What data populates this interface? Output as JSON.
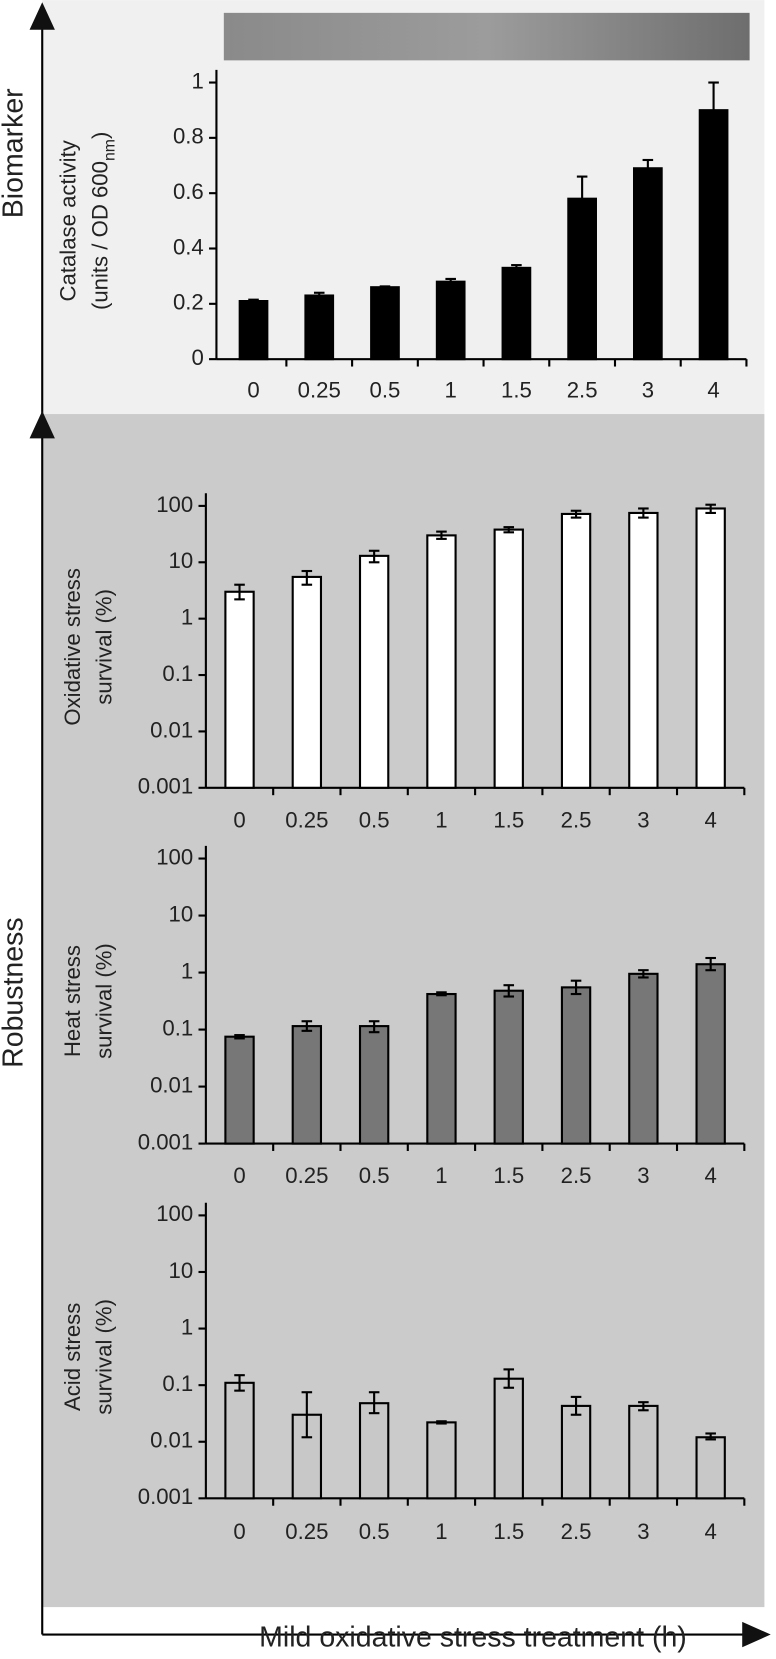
{
  "biomarker_label": "Biomarker",
  "robustness_label": "Robustness",
  "x_label": "Mild oxidative stress treatment (h)",
  "chart_data": [
    {
      "type": "bar",
      "scale": "linear",
      "color": "#000000",
      "y_label": {
        "line1": "Catalase activity",
        "line2": "(units / OD 600",
        "subscript": "nm",
        "suffix": ")"
      },
      "categories": [
        "0",
        "0.25",
        "0.5",
        "1",
        "1.5",
        "2.5",
        "3",
        "4"
      ],
      "values": [
        0.21,
        0.23,
        0.26,
        0.28,
        0.33,
        0.58,
        0.69,
        0.9
      ],
      "error_minus": [
        0.005,
        0.01,
        0.003,
        0.01,
        0.01,
        0.08,
        0.03,
        0.1
      ],
      "error_plus": [
        0.005,
        0.01,
        0.003,
        0.01,
        0.01,
        0.08,
        0.03,
        0.1
      ],
      "ylim": [
        0,
        1
      ],
      "yticks": [
        0,
        0.2,
        0.4,
        0.6,
        0.8,
        1
      ]
    },
    {
      "type": "bar",
      "scale": "log",
      "color": "#ffffff",
      "y_label": {
        "line1": "Oxidative stress",
        "line2": "survival (%)"
      },
      "categories": [
        "0",
        "0.25",
        "0.5",
        "1",
        "1.5",
        "2.5",
        "3",
        "4"
      ],
      "values": [
        3,
        5.5,
        13,
        30,
        38,
        72,
        75,
        90
      ],
      "error_minus": [
        0.8,
        1.5,
        3,
        4,
        4,
        10,
        13,
        15
      ],
      "error_plus": [
        1,
        1.5,
        3,
        5,
        4,
        10,
        15,
        15
      ],
      "ylim": [
        0.001,
        100
      ],
      "yticks": [
        0.001,
        0.01,
        0.1,
        1,
        10,
        100
      ]
    },
    {
      "type": "bar",
      "scale": "log",
      "color": "#777777",
      "y_label": {
        "line1": "Heat stress",
        "line2": "survival (%)"
      },
      "categories": [
        "0",
        "0.25",
        "0.5",
        "1",
        "1.5",
        "2.5",
        "3",
        "4"
      ],
      "values": [
        0.075,
        0.115,
        0.115,
        0.42,
        0.48,
        0.55,
        0.95,
        1.4
      ],
      "error_minus": [
        0.005,
        0.02,
        0.025,
        0.02,
        0.1,
        0.13,
        0.13,
        0.3
      ],
      "error_plus": [
        0.005,
        0.025,
        0.025,
        0.03,
        0.12,
        0.17,
        0.15,
        0.4
      ],
      "ylim": [
        0.001,
        100
      ],
      "yticks": [
        0.001,
        0.01,
        0.1,
        1,
        10,
        100
      ]
    },
    {
      "type": "bar",
      "scale": "log",
      "color": "#c8c8c8",
      "y_label": {
        "line1": "Acid stress",
        "line2": "survival (%)"
      },
      "categories": [
        "0",
        "0.25",
        "0.5",
        "1",
        "1.5",
        "2.5",
        "3",
        "4"
      ],
      "values": [
        0.11,
        0.03,
        0.048,
        0.022,
        0.13,
        0.043,
        0.043,
        0.012
      ],
      "error_minus": [
        0.03,
        0.018,
        0.016,
        0.001,
        0.04,
        0.013,
        0.007,
        0.001
      ],
      "error_plus": [
        0.04,
        0.045,
        0.027,
        0.001,
        0.06,
        0.019,
        0.007,
        0.002
      ],
      "ylim": [
        0.001,
        100
      ],
      "yticks": [
        0.001,
        0.01,
        0.1,
        1,
        10,
        100
      ]
    }
  ]
}
